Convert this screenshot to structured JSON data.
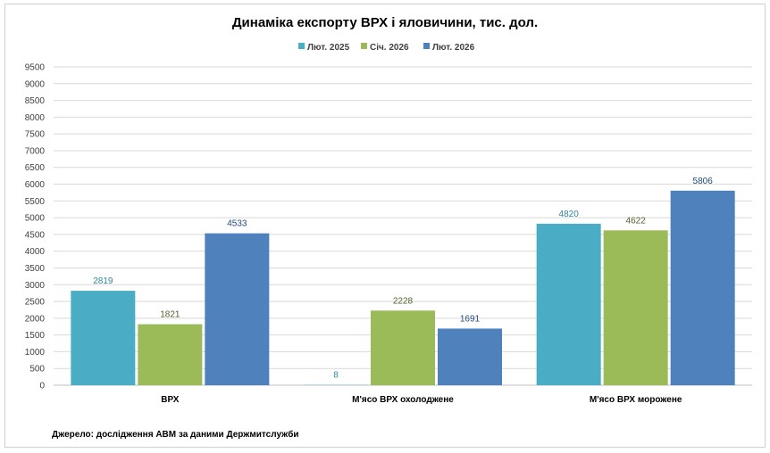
{
  "chart_data": {
    "type": "bar",
    "title": "Динаміка експорту ВРХ і яловичини, тис. дол.",
    "categories": [
      "ВРХ",
      "М'ясо  ВРХ охолоджене",
      "М'ясо  ВРХ морожене"
    ],
    "series": [
      {
        "name": "Лют. 2025",
        "color": "#4bacc6",
        "label_color": "#31859c",
        "values": [
          2819,
          8,
          4820
        ]
      },
      {
        "name": "Січ. 2026",
        "color": "#9bbb59",
        "label_color": "#4f6228",
        "values": [
          1821,
          2228,
          4622
        ]
      },
      {
        "name": "Лют. 2026",
        "color": "#4f81bd",
        "label_color": "#1f497d",
        "values": [
          4533,
          1691,
          5806
        ]
      }
    ],
    "ylim": [
      0,
      9500
    ],
    "ytick_step": 500,
    "grid": true,
    "legend": "top-center",
    "xlabel": "",
    "ylabel": ""
  },
  "source": "Джерело: дослідження  АВМ за даними  Держмитслужби"
}
